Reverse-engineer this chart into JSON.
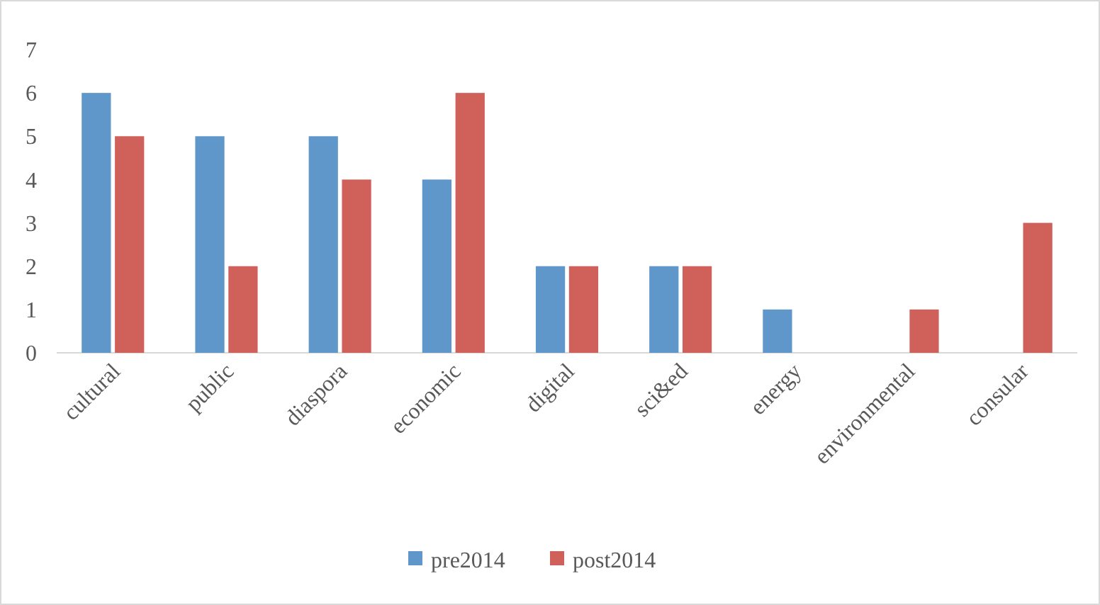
{
  "chart_data": {
    "type": "bar",
    "categories": [
      "cultural",
      "public",
      "diaspora",
      "economic",
      "digital",
      "sci&ed",
      "energy",
      "environmental",
      "consular"
    ],
    "series": [
      {
        "name": "pre2014",
        "color": "#6097cb",
        "values": [
          6,
          5,
          5,
          4,
          2,
          2,
          1,
          0,
          0
        ]
      },
      {
        "name": "post2014",
        "color": "#d0605a",
        "values": [
          5,
          2,
          4,
          6,
          2,
          2,
          0,
          1,
          3
        ]
      }
    ],
    "ylim": [
      0,
      7
    ],
    "yticks": [
      0,
      1,
      2,
      3,
      4,
      5,
      6,
      7
    ],
    "grid": false,
    "legend": "bottom"
  }
}
